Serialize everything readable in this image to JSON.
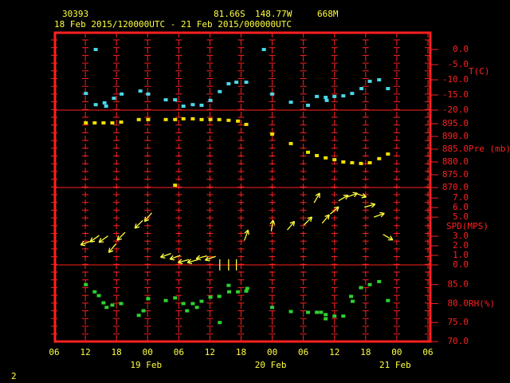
{
  "header": {
    "station": "30393",
    "lat": "81.66S",
    "lon": "148.77W",
    "elev": "668M",
    "period": "18 Feb 2015/120000UTC - 21 Feb 2015/000000UTC",
    "page": "2"
  },
  "chart_data": [
    {
      "type": "scatter",
      "ylabel": "T(C)",
      "color": "#4ad8e8",
      "x": [
        12.1,
        14,
        14,
        15.7,
        16,
        17.5,
        19,
        22.6,
        24.1,
        27.5,
        29.3,
        30.9,
        32.7,
        34.4,
        36.1,
        37.9,
        39.6,
        41.1,
        43,
        46.4,
        48,
        51.6,
        54.9,
        56.6,
        58.3,
        58.5,
        60,
        61.7,
        63.4,
        65.2,
        66.8,
        68.6,
        70.3
      ],
      "values": [
        -14.5,
        0,
        -18.2,
        -17.6,
        -18.7,
        -16.1,
        -14.7,
        -13.7,
        -14.7,
        -16.6,
        -16.6,
        -18.7,
        -18.2,
        -18.4,
        -16.8,
        -13.9,
        -11.3,
        -10.8,
        -10.8,
        0,
        -14.7,
        -17.4,
        -18.4,
        -15.5,
        -15.8,
        -16.8,
        -15.5,
        -15.3,
        -14.5,
        -12.9,
        -10.5,
        -10,
        -12.9
      ],
      "ylim": [
        -20,
        5.8
      ],
      "yticks": [
        {
          "value": 0,
          "label": "0.0"
        },
        {
          "value": -5,
          "label": "-5.0"
        },
        {
          "value": -10,
          "label": "-10.0"
        },
        {
          "value": -15,
          "label": "-15.0"
        },
        {
          "value": -20,
          "label": "-20.0"
        }
      ]
    },
    {
      "type": "scatter",
      "ylabel": "Pre (mb)",
      "color": "#f0e000",
      "x": [
        12.1,
        13.8,
        15.5,
        17.2,
        18.9,
        22.3,
        24.1,
        27.5,
        29.3,
        30.9,
        32.7,
        34.4,
        36.1,
        37.8,
        39.6,
        41.4,
        43,
        29.3,
        48,
        51.6,
        54.9,
        56.6,
        58.3,
        60,
        61.7,
        63.4,
        65.1,
        66.8,
        68.6,
        70.3
      ],
      "values": [
        895.3,
        895.3,
        895.3,
        895.3,
        895.6,
        896.6,
        896.6,
        896.6,
        896.6,
        896.9,
        896.9,
        896.6,
        896.6,
        896.6,
        896.3,
        896,
        894.7,
        870.9,
        890.9,
        887.2,
        883.8,
        882.5,
        881.6,
        880.9,
        880,
        879.7,
        879.4,
        879.7,
        881.3,
        883.1
      ],
      "ylim": [
        870,
        900.3
      ],
      "yticks": [
        {
          "value": 895,
          "label": "895.0"
        },
        {
          "value": 890,
          "label": "890.0"
        },
        {
          "value": 885,
          "label": "885.0"
        },
        {
          "value": 880,
          "label": "880.0"
        },
        {
          "value": 875,
          "label": "875.0"
        },
        {
          "value": 870,
          "label": "870.0"
        }
      ]
    },
    {
      "type": "arrows",
      "ylabel": "SPD(MPS)",
      "color": "#ffff40",
      "x": [
        12.1,
        13.8,
        15.5,
        17.2,
        18.9,
        22.3,
        24.1,
        27.5,
        29.3,
        30.9,
        32.7,
        34.4,
        36.1,
        37.9,
        39.6,
        41.1,
        43,
        48,
        51.6,
        54.9,
        56.6,
        58.3,
        60,
        61.7,
        63.4,
        65.1,
        66.8,
        68.6,
        70.3
      ],
      "values": [
        2.3,
        2.75,
        2.7,
        1.75,
        3,
        4.25,
        5,
        1,
        0.8,
        0.4,
        0.4,
        0.8,
        0.7,
        0,
        0,
        0,
        3.1,
        4.1,
        4.1,
        4.6,
        7,
        4.8,
        5.7,
        7,
        7.3,
        7.3,
        6.2,
        5.2,
        2.9
      ],
      "directions": [
        200,
        215,
        215,
        230,
        225,
        225,
        230,
        200,
        200,
        195,
        195,
        195,
        200,
        90,
        90,
        90,
        70,
        80,
        50,
        45,
        60,
        50,
        40,
        30,
        20,
        -20,
        15,
        20,
        -30
      ],
      "ylim": [
        0,
        8.1
      ],
      "yticks": [
        {
          "value": 7,
          "label": "7.0"
        },
        {
          "value": 6,
          "label": "6.0"
        },
        {
          "value": 5,
          "label": "5.0"
        },
        {
          "value": 3,
          "label": "3.0"
        },
        {
          "value": 2,
          "label": "2.0"
        },
        {
          "value": 1,
          "label": "1.0"
        },
        {
          "value": 0,
          "label": "0.0"
        }
      ]
    },
    {
      "type": "scatter",
      "ylabel": "RH(%)",
      "color": "#30d030",
      "x": [
        12.1,
        13.8,
        14.6,
        15.5,
        16.1,
        17.2,
        18.9,
        22.3,
        23.2,
        24.1,
        27.5,
        29.3,
        30.9,
        31.6,
        32.7,
        33.5,
        34.4,
        36.1,
        37.8,
        37.9,
        39.6,
        39.7,
        41.4,
        43,
        43.2,
        48,
        51.6,
        54.9,
        56.6,
        57.4,
        58.3,
        58.3,
        60,
        61.7,
        63.2,
        63.5,
        65.1,
        66.8,
        68.6,
        70.3
      ],
      "values": [
        85,
        83.1,
        82.1,
        80.2,
        79,
        79.6,
        80,
        76.9,
        78.1,
        81.3,
        80.8,
        81.5,
        80,
        78.1,
        80,
        79,
        80.6,
        81.7,
        81.9,
        75,
        84.8,
        83.1,
        83.1,
        83.3,
        84,
        79,
        77.9,
        77.7,
        77.7,
        77.7,
        77.1,
        76,
        76.7,
        76.7,
        81.9,
        80.6,
        84.2,
        85,
        85.8,
        80.8
      ],
      "ylim": [
        70,
        90.2
      ],
      "yticks": [
        {
          "value": 85,
          "label": "85.0"
        },
        {
          "value": 80,
          "label": "80.0"
        },
        {
          "value": 75,
          "label": "75.0"
        },
        {
          "value": 70,
          "label": "70.0"
        }
      ],
      "xlim": [
        6,
        78
      ],
      "xticks": [
        {
          "value": 6,
          "label": "06"
        },
        {
          "value": 12,
          "label": "12"
        },
        {
          "value": 18,
          "label": "18"
        },
        {
          "value": 24,
          "label": "00"
        },
        {
          "value": 30,
          "label": "06"
        },
        {
          "value": 36,
          "label": "12"
        },
        {
          "value": 42,
          "label": "18"
        },
        {
          "value": 48,
          "label": "00"
        },
        {
          "value": 54,
          "label": "06"
        },
        {
          "value": 60,
          "label": "12"
        },
        {
          "value": 66,
          "label": "18"
        },
        {
          "value": 72,
          "label": "00"
        },
        {
          "value": 78,
          "label": "06"
        }
      ],
      "xdates": [
        {
          "value": 24,
          "label": "19 Feb"
        },
        {
          "value": 48,
          "label": "20 Feb"
        },
        {
          "value": 72,
          "label": "21 Feb"
        }
      ]
    }
  ]
}
